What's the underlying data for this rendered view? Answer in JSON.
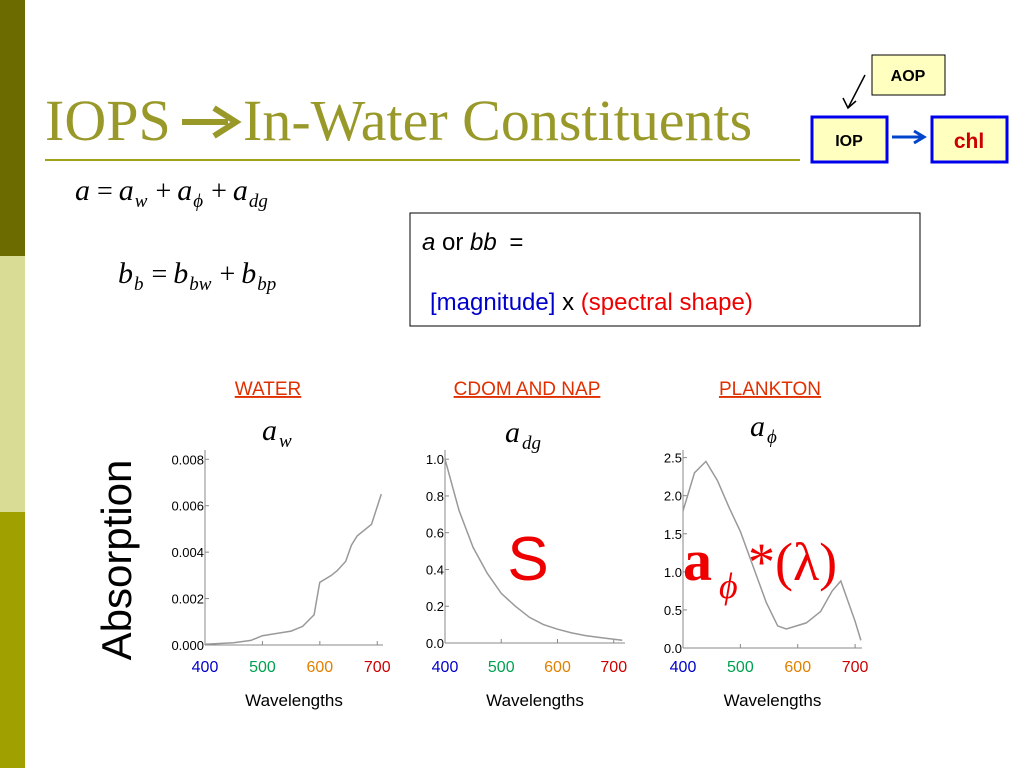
{
  "title": {
    "left": "IOPS",
    "right": "In-Water Constituents"
  },
  "diagram": {
    "aop": "AOP",
    "iop": "IOP",
    "chl": "chl"
  },
  "equations": [
    [
      {
        "t": "a"
      },
      {
        "op": "="
      },
      {
        "t": "a",
        "sub": "w"
      },
      {
        "op": "+"
      },
      {
        "t": "a",
        "sub": "ϕ"
      },
      {
        "op": "+"
      },
      {
        "t": "a",
        "sub": "dg"
      }
    ],
    [
      {
        "t": "b",
        "sub": "b"
      },
      {
        "op": "="
      },
      {
        "t": "b",
        "sub": "bw"
      },
      {
        "op": "+"
      },
      {
        "t": "b",
        "sub": "bp"
      }
    ]
  ],
  "box": {
    "line1": {
      "a": "a",
      "or": "or",
      "bb": "bb",
      "eq": "="
    },
    "line2": {
      "magnitude": "[magnitude]",
      "times": "x",
      "shape": "(spectral shape)"
    }
  },
  "y_label": "Absorption",
  "chart_data": [
    {
      "type": "line",
      "title": "WATER",
      "symbol": {
        "base": "a",
        "sub": "w"
      },
      "x_label": "Wavelengths",
      "color": "#999999",
      "x": [
        400,
        450,
        480,
        500,
        550,
        570,
        590,
        597,
        600,
        620,
        630,
        645,
        655,
        665,
        690,
        707
      ],
      "values": [
        3e-05,
        0.0001,
        0.0002,
        0.0004,
        0.0006,
        0.0008,
        0.0013,
        0.0023,
        0.0027,
        0.003,
        0.0032,
        0.0036,
        0.0043,
        0.0047,
        0.0052,
        0.0065
      ],
      "xlim": [
        400,
        710
      ],
      "xticks": [
        400,
        500,
        600,
        700
      ],
      "xtick_colors": [
        "#0000cc",
        "#00a050",
        "#e08000",
        "#cc0000"
      ],
      "ylim": [
        0,
        0.0084
      ],
      "yticks": [
        {
          "value": 0,
          "label": "0.000"
        },
        {
          "value": 0.002,
          "label": "0.002"
        },
        {
          "value": 0.004,
          "label": "0.004"
        },
        {
          "value": 0.006,
          "label": "0.006"
        },
        {
          "value": 0.008,
          "label": "0.008"
        }
      ]
    },
    {
      "type": "line",
      "title": "CDOM AND NAP",
      "symbol": {
        "base": "a",
        "sub": "dg"
      },
      "x_label": "Wavelengths",
      "color": "#999999",
      "annotation": {
        "text": "S"
      },
      "x": [
        400,
        425,
        450,
        475,
        500,
        525,
        550,
        575,
        600,
        625,
        650,
        675,
        700,
        715
      ],
      "values": [
        1.0,
        0.72,
        0.52,
        0.38,
        0.27,
        0.2,
        0.14,
        0.1,
        0.075,
        0.055,
        0.04,
        0.03,
        0.02,
        0.015
      ],
      "xlim": [
        400,
        720
      ],
      "xticks": [
        400,
        500,
        600,
        700
      ],
      "xtick_colors": [
        "#0000cc",
        "#00a050",
        "#e08000",
        "#cc0000"
      ],
      "ylim": [
        0,
        1.05
      ],
      "yticks": [
        {
          "value": 0,
          "label": "0.0"
        },
        {
          "value": 0.2,
          "label": "0.2"
        },
        {
          "value": 0.4,
          "label": "0.4"
        },
        {
          "value": 0.6,
          "label": "0.6"
        },
        {
          "value": 0.8,
          "label": "0.8"
        },
        {
          "value": 1,
          "label": "1.0"
        }
      ]
    },
    {
      "type": "line",
      "title": "PLANKTON",
      "symbol": {
        "base": "a",
        "sub": "ϕ"
      },
      "x_label": "Wavelengths",
      "color": "#999999",
      "annotation": {
        "base": "a",
        "sub": "ϕ",
        "rest": "*(λ)"
      },
      "x": [
        400,
        420,
        440,
        460,
        480,
        500,
        545,
        565,
        580,
        615,
        640,
        660,
        675,
        700,
        710
      ],
      "values": [
        1.8,
        2.3,
        2.45,
        2.2,
        1.85,
        1.53,
        0.6,
        0.29,
        0.25,
        0.33,
        0.48,
        0.75,
        0.88,
        0.35,
        0.1
      ],
      "xlim": [
        400,
        712
      ],
      "xticks": [
        400,
        500,
        600,
        700
      ],
      "xtick_colors": [
        "#0000cc",
        "#00a050",
        "#e08000",
        "#cc0000"
      ],
      "ylim": [
        0,
        2.6
      ],
      "yticks": [
        {
          "value": 0,
          "label": "0.0"
        },
        {
          "value": 0.5,
          "label": "0.5"
        },
        {
          "value": 1,
          "label": "1.0"
        },
        {
          "value": 1.5,
          "label": "1.5"
        },
        {
          "value": 2,
          "label": "2.0"
        },
        {
          "value": 2.5,
          "label": "2.5"
        }
      ]
    }
  ]
}
